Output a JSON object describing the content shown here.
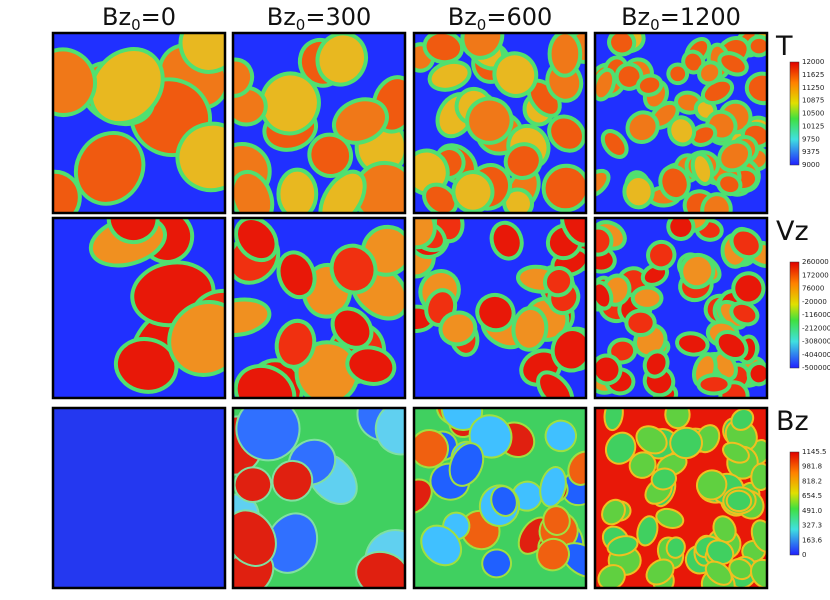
{
  "columns": [
    {
      "symbol": "Bz",
      "subscript": "0",
      "value": "=0"
    },
    {
      "symbol": "Bz",
      "subscript": "0",
      "value": "=300"
    },
    {
      "symbol": "Bz",
      "subscript": "0",
      "value": "=600"
    },
    {
      "symbol": "Bz",
      "subscript": "0",
      "value": "=1200"
    }
  ],
  "rows": [
    {
      "label": "T",
      "colorbar": [
        "12000",
        "11625",
        "11250",
        "10875",
        "10500",
        "10125",
        "9750",
        "9375",
        "9000"
      ]
    },
    {
      "label": "Vz",
      "colorbar": [
        "260000",
        "172000",
        "76000",
        "-20000",
        "-116000",
        "-212000",
        "-308000",
        "-404000",
        "-500000"
      ]
    },
    {
      "label": "Bz",
      "colorbar": [
        "1145.5",
        "981.8",
        "818.2",
        "654.5",
        "491.0",
        "327.3",
        "163.6",
        "0"
      ]
    }
  ]
}
